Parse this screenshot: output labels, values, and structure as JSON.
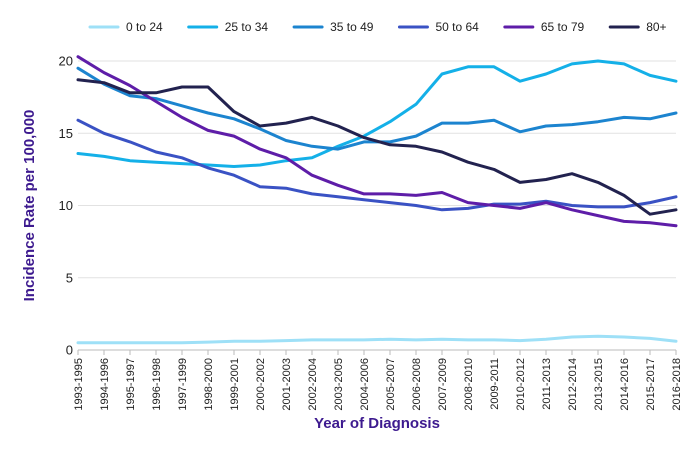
{
  "chart_data": {
    "type": "line",
    "xlabel": "Year of Diagnosis",
    "ylabel": "Incidence Rate per 100,000",
    "label_color": "#3d1a8f",
    "ylim": [
      0,
      20
    ],
    "yticks": [
      0,
      5,
      10,
      15,
      20
    ],
    "grid": "horizontal",
    "legend_position": "top",
    "categories": [
      "1993-1995",
      "1994-1996",
      "1995-1997",
      "1996-1998",
      "1997-1999",
      "1998-2000",
      "1999-2001",
      "2000-2002",
      "2001-2003",
      "2002-2004",
      "2003-2005",
      "2004-2006",
      "2005-2007",
      "2006-2008",
      "2007-2009",
      "2008-2010",
      "2009-2011",
      "2010-2012",
      "2011-2013",
      "2012-2014",
      "2013-2015",
      "2014-2016",
      "2015-2017",
      "2016-2018"
    ],
    "series": [
      {
        "name": "0 to 24",
        "color": "#9ee0f7",
        "values": [
          0.5,
          0.5,
          0.5,
          0.5,
          0.5,
          0.55,
          0.6,
          0.6,
          0.65,
          0.7,
          0.7,
          0.7,
          0.75,
          0.7,
          0.75,
          0.7,
          0.7,
          0.65,
          0.75,
          0.9,
          0.95,
          0.9,
          0.8,
          0.6
        ]
      },
      {
        "name": "25 to 34",
        "color": "#14b0e8",
        "values": [
          13.6,
          13.4,
          13.1,
          13.0,
          12.9,
          12.8,
          12.7,
          12.8,
          13.1,
          13.3,
          14.1,
          14.8,
          15.8,
          17.0,
          19.1,
          19.6,
          19.6,
          18.6,
          19.1,
          19.8,
          20.0,
          19.8,
          19.0,
          18.6
        ]
      },
      {
        "name": "35 to 49",
        "color": "#1c84cf",
        "values": [
          19.5,
          18.4,
          17.6,
          17.4,
          16.9,
          16.4,
          16.0,
          15.3,
          14.5,
          14.1,
          13.9,
          14.4,
          14.4,
          14.8,
          15.7,
          15.7,
          15.9,
          15.1,
          15.5,
          15.6,
          15.8,
          16.1,
          16.0,
          16.4
        ]
      },
      {
        "name": "50 to 64",
        "color": "#3a52c4",
        "values": [
          15.9,
          15.0,
          14.4,
          13.7,
          13.3,
          12.6,
          12.1,
          11.3,
          11.2,
          10.8,
          10.6,
          10.4,
          10.2,
          10.0,
          9.7,
          9.8,
          10.1,
          10.1,
          10.3,
          10.0,
          9.9,
          9.9,
          10.2,
          10.6
        ]
      },
      {
        "name": "65 to 79",
        "color": "#5e1da8",
        "values": [
          20.3,
          19.2,
          18.3,
          17.2,
          16.1,
          15.2,
          14.8,
          13.9,
          13.3,
          12.1,
          11.4,
          10.8,
          10.8,
          10.7,
          10.9,
          10.2,
          10.0,
          9.8,
          10.2,
          9.7,
          9.3,
          8.9,
          8.8,
          8.6
        ]
      },
      {
        "name": "80+",
        "color": "#22224f",
        "values": [
          18.7,
          18.5,
          17.8,
          17.8,
          18.2,
          18.2,
          16.5,
          15.5,
          15.7,
          16.1,
          15.5,
          14.7,
          14.2,
          14.1,
          13.7,
          13.0,
          12.5,
          11.6,
          11.8,
          12.2,
          11.6,
          10.7,
          9.4,
          9.7
        ]
      }
    ]
  }
}
